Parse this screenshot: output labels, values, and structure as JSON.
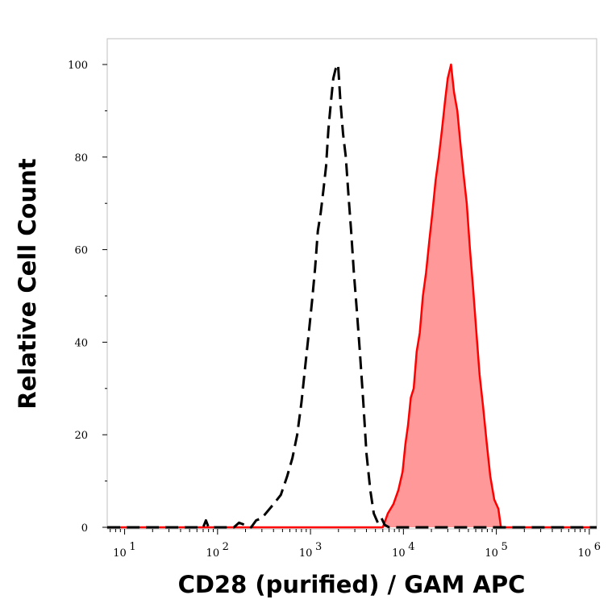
{
  "chart_data": {
    "type": "area",
    "xlabel": "CD28 (purified) / GAM APC",
    "ylabel": "Relative Cell Count",
    "x_scale": "log",
    "xlim": [
      6.5,
      1200000
    ],
    "ylim": [
      0,
      100
    ],
    "y_ticks": [
      {
        "value": 0,
        "label": "0"
      },
      {
        "value": 20,
        "label": "20"
      },
      {
        "value": 40,
        "label": "40"
      },
      {
        "value": 60,
        "label": "60"
      },
      {
        "value": 80,
        "label": "80"
      },
      {
        "value": 100,
        "label": "100"
      }
    ],
    "x_ticks": [
      {
        "value": 10,
        "base": "10",
        "exp": "1"
      },
      {
        "value": 100,
        "base": "10",
        "exp": "2"
      },
      {
        "value": 1000,
        "base": "10",
        "exp": "3"
      },
      {
        "value": 10000,
        "base": "10",
        "exp": "4"
      },
      {
        "value": 100000,
        "base": "10",
        "exp": "5"
      },
      {
        "value": 1000000,
        "base": "10",
        "exp": "6"
      }
    ],
    "grid": false,
    "legend": "none",
    "series": [
      {
        "style": "dashed-line",
        "color": "#000000",
        "x": [
          6.5,
          70,
          75,
          80,
          150,
          170,
          230,
          260,
          300,
          330,
          400,
          480,
          560,
          640,
          720,
          800,
          880,
          960,
          1040,
          1120,
          1200,
          1290,
          1380,
          1470,
          1560,
          1660,
          1760,
          1860,
          1980,
          2100,
          2240,
          2400,
          2560,
          2740,
          2930,
          3150,
          3400,
          3700,
          4000,
          4400,
          4800,
          5300,
          5800,
          6300,
          7000,
          1200000
        ],
        "y": [
          0,
          0,
          1.5,
          0,
          0,
          1,
          0,
          1.5,
          2,
          3,
          5,
          7,
          11,
          15,
          20,
          27,
          35,
          42,
          49,
          56,
          64,
          68,
          73,
          78,
          86,
          92,
          97,
          99,
          100,
          92,
          85,
          80,
          72,
          64,
          55,
          47,
          38,
          27,
          16,
          8,
          3,
          1,
          2,
          0.5,
          0,
          0
        ]
      },
      {
        "style": "filled-area",
        "color": "#ff0000",
        "fill": "#ff9999",
        "x": [
          6.5,
          6000,
          6800,
          7800,
          8800,
          9800,
          10500,
          11200,
          12000,
          12900,
          13900,
          15000,
          16200,
          17500,
          19000,
          20500,
          22200,
          24000,
          26000,
          28000,
          30000,
          32500,
          35000,
          38000,
          41000,
          44500,
          48000,
          52000,
          56000,
          61000,
          66000,
          72000,
          79000,
          86000,
          95000,
          105000,
          112000,
          1200000
        ],
        "y": [
          0,
          0,
          3,
          5,
          8,
          12,
          18,
          22,
          28,
          30,
          38,
          42,
          50,
          55,
          62,
          68,
          75,
          80,
          86,
          92,
          97,
          100,
          94,
          90,
          83,
          76,
          70,
          60,
          52,
          42,
          33,
          26,
          18,
          11,
          6,
          4,
          0,
          0
        ]
      }
    ]
  }
}
